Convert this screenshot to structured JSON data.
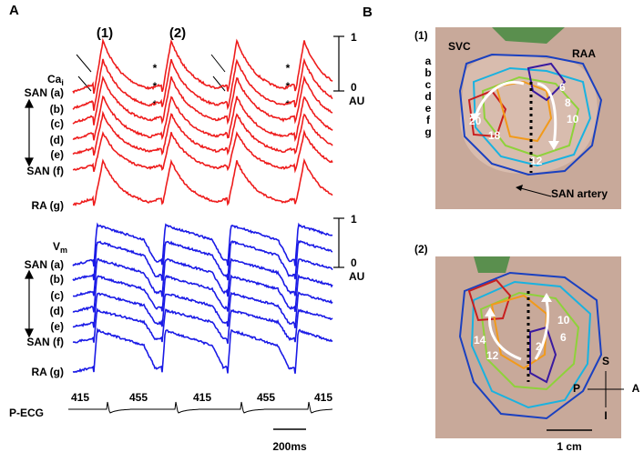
{
  "panel_a": {
    "label": "A",
    "beat_labels": [
      "(1)",
      "(2)"
    ],
    "ca_label": {
      "main": "Ca",
      "sub": "i"
    },
    "vm_label": {
      "main": "V",
      "sub": "m"
    },
    "trace_labels": [
      "SAN (a)",
      "(b)",
      "(c)",
      "(d)",
      "(e)",
      "SAN (f)",
      "RA (g)"
    ],
    "scale": {
      "top": "1",
      "bottom": "0",
      "unit": "AU"
    },
    "asterisk": "*",
    "ecg_label": "P-ECG",
    "intervals": [
      "415",
      "455",
      "415",
      "455",
      "415"
    ],
    "time_scale": "200ms"
  },
  "panel_b": {
    "label": "B",
    "map1": {
      "label": "(1)",
      "letters": [
        "a",
        "b",
        "c",
        "d",
        "e",
        "f",
        "g"
      ],
      "landmarks": [
        "SVC",
        "RAA"
      ],
      "isochrones": [
        "20",
        "18",
        "6",
        "8",
        "10",
        "12"
      ],
      "artery": "SAN artery"
    },
    "map2": {
      "label": "(2)",
      "isochrones": [
        "14",
        "12",
        "2",
        "6",
        "10"
      ],
      "directions": {
        "s": "S",
        "p": "P",
        "a": "A",
        "i": "I"
      }
    },
    "scale": "1 cm"
  }
}
